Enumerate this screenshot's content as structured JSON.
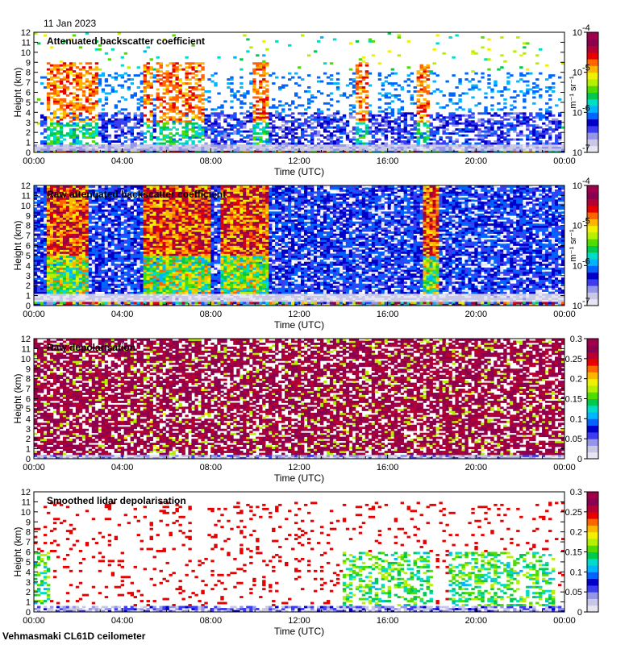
{
  "date_label": "11 Jan 2023",
  "footer": "Vehmasmaki CL61D ceilometer",
  "chart_data": [
    {
      "type": "heatmap",
      "title": "Attenuated backscatter coefficient",
      "xlabel": "Time (UTC)",
      "ylabel": "Height (km)",
      "x_ticks": [
        "00:00",
        "04:00",
        "08:00",
        "12:00",
        "16:00",
        "20:00",
        "00:00"
      ],
      "y_ticks": [
        "0",
        "1",
        "2",
        "3",
        "4",
        "5",
        "6",
        "7",
        "8",
        "9",
        "10",
        "11",
        "12"
      ],
      "ylim": [
        0,
        12
      ],
      "colorbar": {
        "scale": "log",
        "ticks": [
          "10",
          "10",
          "10",
          "10"
        ],
        "exponents": [
          "-4",
          "-5",
          "-6",
          "-7"
        ],
        "unit": "m⁻¹ sr⁻¹",
        "range": [
          1e-07,
          0.0001
        ]
      },
      "pattern": "backscatter_filtered"
    },
    {
      "type": "heatmap",
      "title": "Raw attenuated backscatter coefficient",
      "xlabel": "Time (UTC)",
      "ylabel": "Height (km)",
      "x_ticks": [
        "00:00",
        "04:00",
        "08:00",
        "12:00",
        "16:00",
        "20:00",
        "00:00"
      ],
      "y_ticks": [
        "0",
        "1",
        "2",
        "3",
        "4",
        "5",
        "6",
        "7",
        "8",
        "9",
        "10",
        "11",
        "12"
      ],
      "ylim": [
        0,
        12
      ],
      "colorbar": {
        "scale": "log",
        "ticks": [
          "10",
          "10",
          "10",
          "10"
        ],
        "exponents": [
          "-4",
          "-5",
          "-6",
          "-7"
        ],
        "unit": "m⁻¹ sr⁻¹",
        "range": [
          1e-07,
          0.0001
        ]
      },
      "pattern": "backscatter_raw"
    },
    {
      "type": "heatmap",
      "title": "Raw depolarisation",
      "xlabel": "Time (UTC)",
      "ylabel": "Height (km)",
      "x_ticks": [
        "00:00",
        "04:00",
        "08:00",
        "12:00",
        "16:00",
        "20:00",
        "00:00"
      ],
      "y_ticks": [
        "0",
        "1",
        "2",
        "3",
        "4",
        "5",
        "6",
        "7",
        "8",
        "9",
        "10",
        "11",
        "12"
      ],
      "ylim": [
        0,
        12
      ],
      "colorbar": {
        "scale": "linear",
        "ticks": [
          "0.3",
          "0.25",
          "0.2",
          "0.15",
          "0.1",
          "0.05",
          "0"
        ],
        "range": [
          0,
          0.3
        ]
      },
      "pattern": "depol_raw"
    },
    {
      "type": "heatmap",
      "title": "Smoothed lidar depolarisation",
      "xlabel": "Time (UTC)",
      "ylabel": "Height (km)",
      "x_ticks": [
        "00:00",
        "04:00",
        "08:00",
        "12:00",
        "16:00",
        "20:00",
        "00:00"
      ],
      "y_ticks": [
        "0",
        "1",
        "2",
        "3",
        "4",
        "5",
        "6",
        "7",
        "8",
        "9",
        "10",
        "11",
        "12"
      ],
      "ylim": [
        0,
        12
      ],
      "colorbar": {
        "scale": "linear",
        "ticks": [
          "0.3",
          "0.25",
          "0.2",
          "0.15",
          "0.1",
          "0.05",
          "0"
        ],
        "range": [
          0,
          0.3
        ]
      },
      "pattern": "depol_smooth"
    }
  ],
  "colors": {
    "colormap": [
      "#e6e6f0",
      "#c8c8e6",
      "#9696e6",
      "#3c3cf0",
      "#0000c8",
      "#0064ff",
      "#00b4ff",
      "#00dcc8",
      "#00c850",
      "#50dc00",
      "#b4f000",
      "#f0f000",
      "#ffb400",
      "#ff6400",
      "#e60000",
      "#b40032",
      "#8c0050",
      "#a0004b"
    ]
  }
}
